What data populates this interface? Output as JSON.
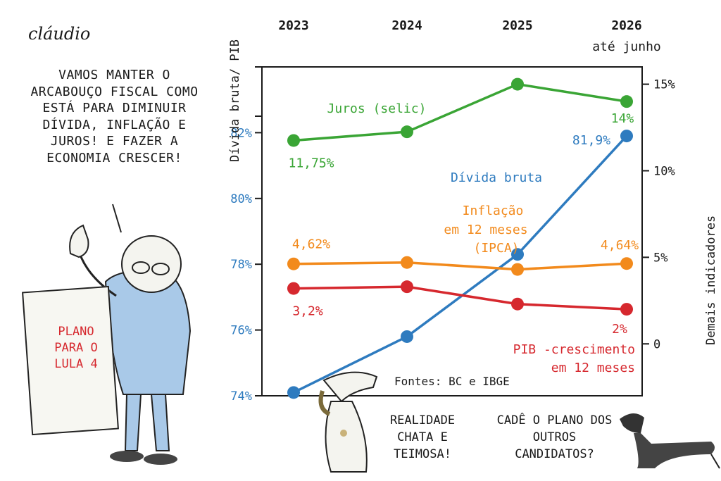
{
  "cartoon": {
    "signature": "cláudio",
    "speech": "VAMOS MANTER O ARCABOUÇO FISCAL COMO ESTÁ PARA DIMINUIR DÍVIDA, INFLAÇÃO E JUROS! E FAZER A ECONOMIA CRESCER!",
    "plan_sheet": "PLANO PARA O LULA 4",
    "dog_left_speech": "REALIDADE CHATA E TEIMOSA!",
    "dog_right_speech": "CADÊ O PLANO DOS OUTROS CANDIDATOS?",
    "sources": "Fontes: BC e IBGE"
  },
  "colors": {
    "juros": "#3aa535",
    "divida": "#2e7bbf",
    "inflacao": "#f28a1c",
    "pib": "#d6282e",
    "ink": "#1a1a1a"
  },
  "chart_data": {
    "type": "line",
    "x": [
      "2023",
      "2024",
      "2025",
      "2026"
    ],
    "x_note": "até junho",
    "ylabel_left": "Dívida bruta/ PIB",
    "ylabel_right": "Demais indicadores",
    "ylim_left": [
      74,
      84
    ],
    "yticks_left": [
      "74%",
      "76%",
      "78%",
      "80%",
      "82%"
    ],
    "ylim_right": [
      -3,
      16
    ],
    "yticks_right": [
      "0",
      "5%",
      "10%",
      "15%"
    ],
    "grid": false,
    "series": [
      {
        "name": "Juros (selic)",
        "axis": "right",
        "values": [
          11.75,
          12.25,
          15.0,
          14.0
        ],
        "labels": [
          "11,75%",
          "",
          "",
          "14%"
        ]
      },
      {
        "name": "Dívida bruta",
        "axis": "left",
        "values": [
          74.1,
          75.8,
          78.3,
          81.9
        ],
        "labels": [
          "",
          "",
          "",
          "81,9%"
        ]
      },
      {
        "name": "Inflação em 12 meses (IPCA)",
        "axis": "right",
        "values": [
          4.62,
          4.7,
          4.3,
          4.64
        ],
        "labels": [
          "4,62%",
          "",
          "",
          "4,64%"
        ]
      },
      {
        "name": "PIB -crescimento em 12 meses",
        "axis": "right",
        "values": [
          3.2,
          3.3,
          2.3,
          2.0
        ],
        "labels": [
          "3,2%",
          "",
          "",
          "2%"
        ]
      }
    ]
  }
}
